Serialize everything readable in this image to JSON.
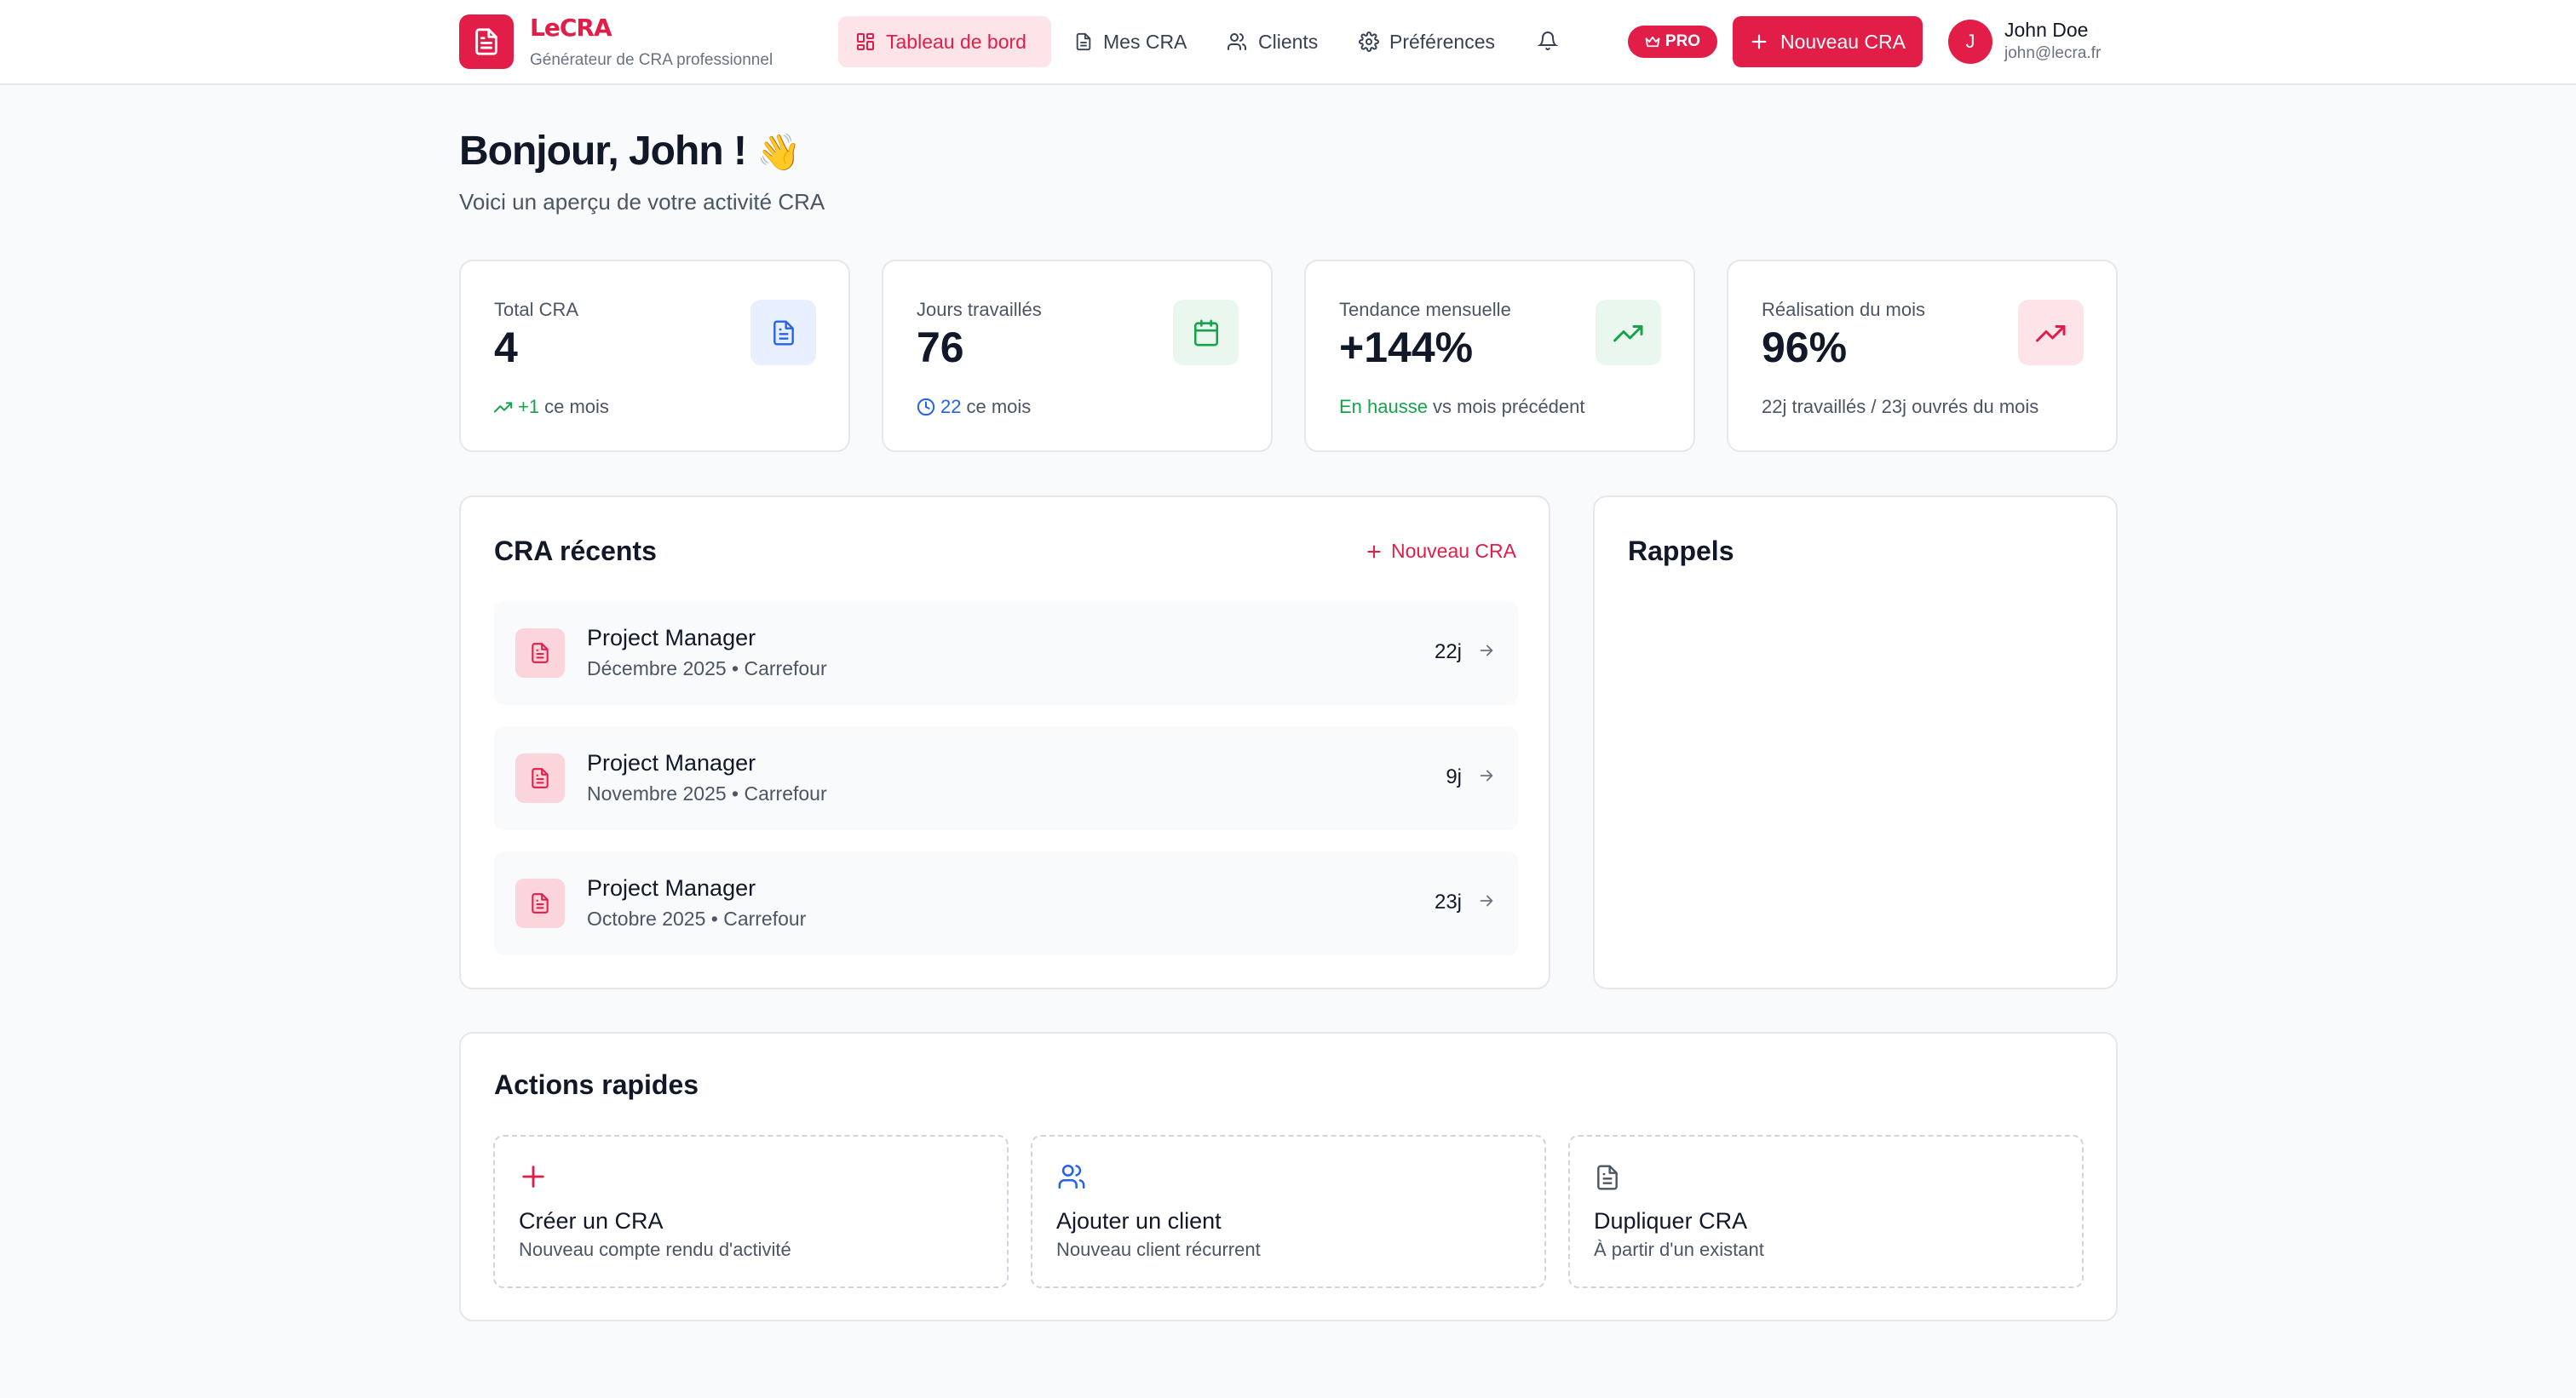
{
  "colors": {
    "accent": "#e11d48",
    "accent_soft": "#fde4e8",
    "green": "#16a34a",
    "blue": "#2563eb"
  },
  "header": {
    "brand_name": "LeCRA",
    "brand_tagline": "Générateur de CRA professionnel",
    "nav": [
      {
        "label": "Tableau de bord",
        "icon": "grid-icon",
        "active": true
      },
      {
        "label": "Mes CRA",
        "icon": "document-icon",
        "active": false
      },
      {
        "label": "Clients",
        "icon": "users-icon",
        "active": false
      },
      {
        "label": "Préférences",
        "icon": "gear-icon",
        "active": false
      }
    ],
    "pro_badge": "PRO",
    "new_cra_label": "Nouveau CRA",
    "user": {
      "initial": "J",
      "name": "John Doe",
      "email": "john@lecra.fr"
    }
  },
  "greeting": {
    "title": "Bonjour, John !",
    "emoji": "👋",
    "subtitle": "Voici un aperçu de votre activité CRA"
  },
  "stats": [
    {
      "label": "Total CRA",
      "value": "4",
      "foot_highlight": "+1",
      "foot_text": "ce mois",
      "icon": "document-icon"
    },
    {
      "label": "Jours travaillés",
      "value": "76",
      "foot_highlight": "22",
      "foot_text": "ce mois",
      "icon": "calendar-icon"
    },
    {
      "label": "Tendance mensuelle",
      "value": "+144%",
      "foot_highlight": "En hausse",
      "foot_text": "vs mois précédent",
      "icon": "trending-up-icon"
    },
    {
      "label": "Réalisation du mois",
      "value": "96%",
      "foot_text": "22j travaillés / 23j ouvrés du mois",
      "icon": "trending-up-icon"
    }
  ],
  "recent": {
    "title": "CRA récents",
    "new_label": "Nouveau CRA",
    "items": [
      {
        "title": "Project Manager",
        "subtitle": "Décembre 2025 • Carrefour",
        "days": "22j"
      },
      {
        "title": "Project Manager",
        "subtitle": "Novembre 2025 • Carrefour",
        "days": "9j"
      },
      {
        "title": "Project Manager",
        "subtitle": "Octobre 2025 • Carrefour",
        "days": "23j"
      }
    ]
  },
  "reminders": {
    "title": "Rappels"
  },
  "quick_actions": {
    "title": "Actions rapides",
    "items": [
      {
        "title": "Créer un CRA",
        "subtitle": "Nouveau compte rendu d'activité",
        "icon": "plus-icon"
      },
      {
        "title": "Ajouter un client",
        "subtitle": "Nouveau client récurrent",
        "icon": "users-icon"
      },
      {
        "title": "Dupliquer CRA",
        "subtitle": "À partir d'un existant",
        "icon": "document-icon"
      }
    ]
  }
}
